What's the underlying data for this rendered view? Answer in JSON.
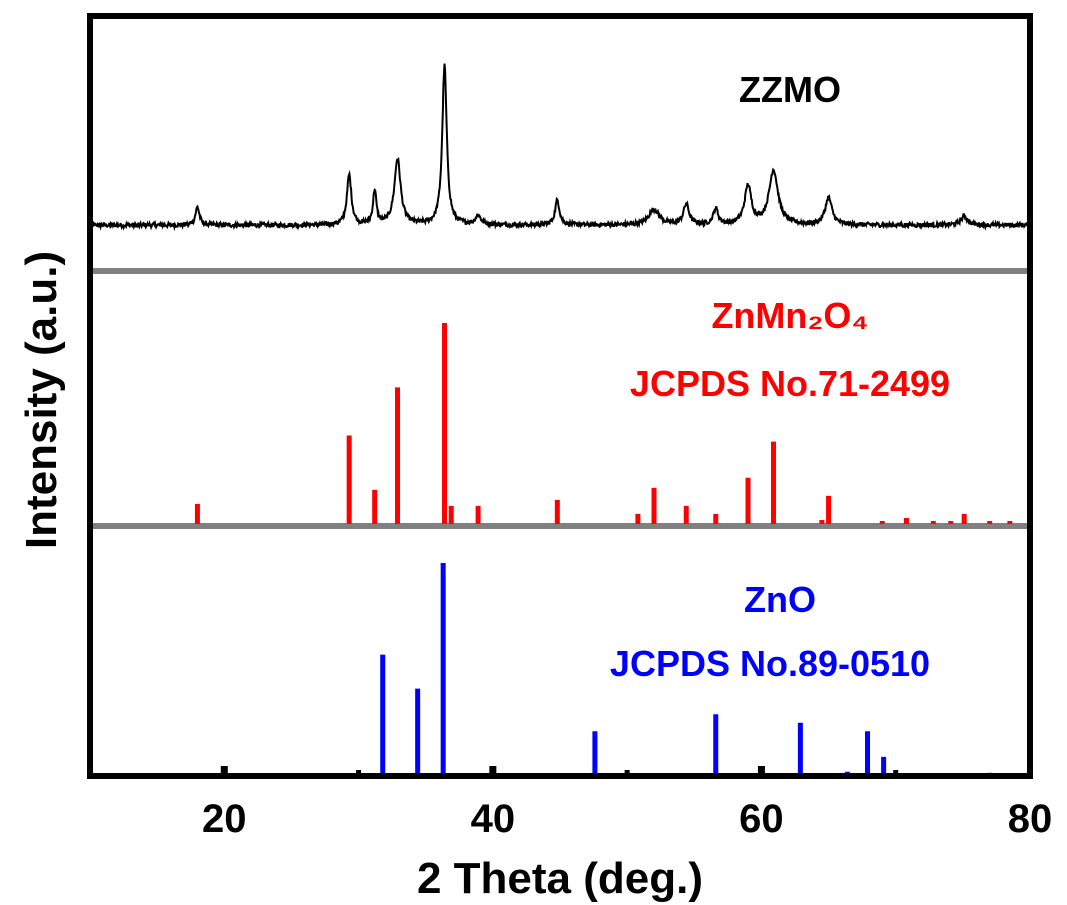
{
  "chart_data": {
    "type": "line",
    "xlabel": "2 Theta (deg.)",
    "ylabel": "Intensity (a.u.)",
    "xlim": [
      10,
      80
    ],
    "xticks": [
      20,
      40,
      60,
      80
    ],
    "grid": false,
    "panels": [
      {
        "id": "zzmo",
        "label": "ZZMO",
        "color": "#000000",
        "kind": "pattern",
        "baseline": 3,
        "noise": 1.0,
        "peaks": [
          {
            "x": 18.0,
            "h": 8,
            "w": 0.18
          },
          {
            "x": 29.3,
            "h": 22,
            "w": 0.2
          },
          {
            "x": 31.2,
            "h": 15,
            "w": 0.15
          },
          {
            "x": 32.9,
            "h": 29,
            "w": 0.28
          },
          {
            "x": 36.4,
            "h": 70,
            "w": 0.2
          },
          {
            "x": 38.9,
            "h": 4,
            "w": 0.25
          },
          {
            "x": 44.8,
            "h": 11,
            "w": 0.2
          },
          {
            "x": 52.0,
            "h": 7,
            "w": 0.45
          },
          {
            "x": 54.4,
            "h": 9,
            "w": 0.25
          },
          {
            "x": 56.6,
            "h": 7,
            "w": 0.22
          },
          {
            "x": 59.0,
            "h": 17,
            "w": 0.3
          },
          {
            "x": 60.9,
            "h": 24,
            "w": 0.4
          },
          {
            "x": 65.0,
            "h": 12,
            "w": 0.3
          },
          {
            "x": 75.1,
            "h": 4,
            "w": 0.3
          }
        ]
      },
      {
        "id": "znmn2o4",
        "label_lines": [
          "ZnMn₂O₄",
          "JCPDS No.71-2499"
        ],
        "color": "#ff0000",
        "kind": "sticks",
        "max": 100,
        "sticks": [
          {
            "x": 18.0,
            "y": 10
          },
          {
            "x": 29.3,
            "y": 44
          },
          {
            "x": 31.2,
            "y": 17
          },
          {
            "x": 32.9,
            "y": 68
          },
          {
            "x": 36.4,
            "y": 100
          },
          {
            "x": 36.9,
            "y": 9
          },
          {
            "x": 38.9,
            "y": 9
          },
          {
            "x": 44.8,
            "y": 12
          },
          {
            "x": 50.8,
            "y": 5
          },
          {
            "x": 52.0,
            "y": 18
          },
          {
            "x": 54.4,
            "y": 9
          },
          {
            "x": 56.6,
            "y": 5
          },
          {
            "x": 59.0,
            "y": 23
          },
          {
            "x": 60.9,
            "y": 41
          },
          {
            "x": 64.5,
            "y": 2
          },
          {
            "x": 65.0,
            "y": 14
          },
          {
            "x": 69.0,
            "y": 1
          },
          {
            "x": 70.8,
            "y": 3
          },
          {
            "x": 72.8,
            "y": 1
          },
          {
            "x": 74.1,
            "y": 1
          },
          {
            "x": 75.1,
            "y": 5
          },
          {
            "x": 77.0,
            "y": 1.5
          },
          {
            "x": 78.5,
            "y": 1.5
          }
        ]
      },
      {
        "id": "zno",
        "label_lines": [
          "ZnO",
          "JCPDS No.89-0510"
        ],
        "color": "#0000ff",
        "kind": "sticks",
        "max": 100,
        "sticks": [
          {
            "x": 31.8,
            "y": 57
          },
          {
            "x": 34.4,
            "y": 41
          },
          {
            "x": 36.3,
            "y": 100
          },
          {
            "x": 47.6,
            "y": 21
          },
          {
            "x": 56.6,
            "y": 29
          },
          {
            "x": 62.9,
            "y": 25
          },
          {
            "x": 66.4,
            "y": 2
          },
          {
            "x": 67.9,
            "y": 21
          },
          {
            "x": 69.1,
            "y": 9
          },
          {
            "x": 72.6,
            "y": 0.5
          },
          {
            "x": 77.0,
            "y": 1.5
          }
        ]
      }
    ]
  }
}
